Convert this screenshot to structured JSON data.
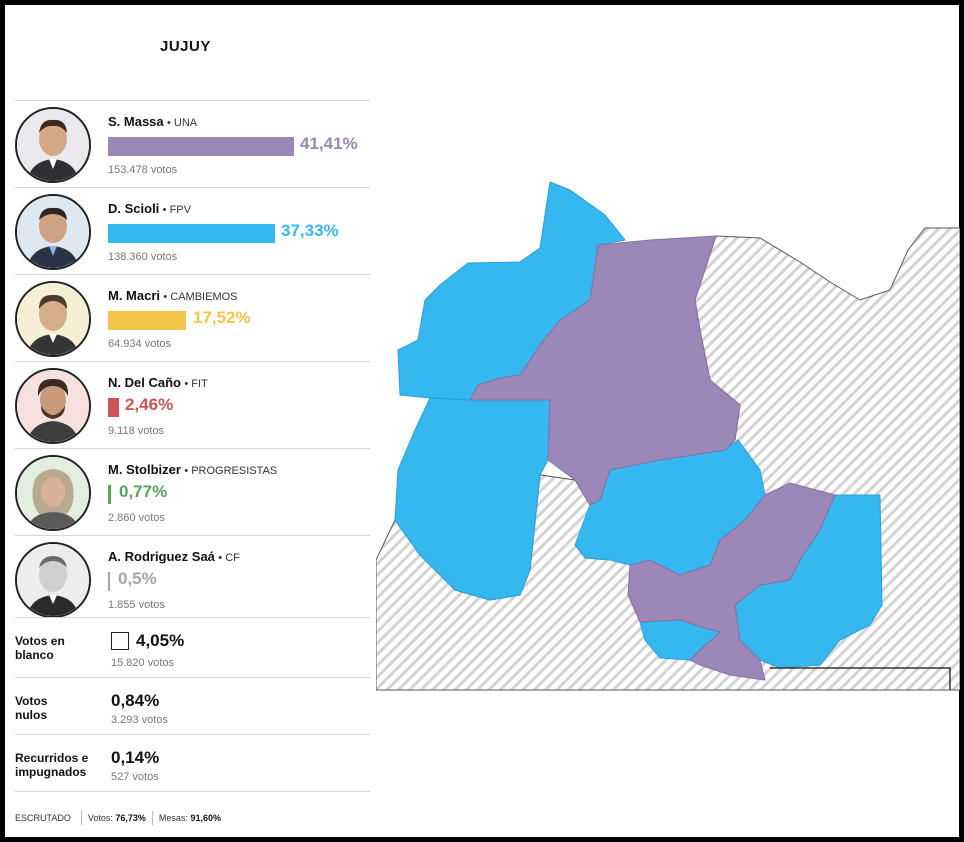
{
  "title": "JUJUY",
  "candidates": [
    {
      "name": "S. Massa",
      "party": "UNA",
      "pct": "41,41%",
      "pct_value": 41.41,
      "votes": "153.478 votos",
      "color": "#9b86b8"
    },
    {
      "name": "D. Scioli",
      "party": "FPV",
      "pct": "37,33%",
      "pct_value": 37.33,
      "votes": "138.360 votos",
      "color": "#35b8f0"
    },
    {
      "name": "M. Macri",
      "party": "CAMBIEMOS",
      "pct": "17,52%",
      "pct_value": 17.52,
      "votes": "64.934 votos",
      "color": "#f2c54a"
    },
    {
      "name": "N. Del Caño",
      "party": "FIT",
      "pct": "2,46%",
      "pct_value": 2.46,
      "votes": "9.118 votos",
      "color": "#cc5555"
    },
    {
      "name": "M. Stolbizer",
      "party": "PROGRESISTAS",
      "pct": "0,77%",
      "pct_value": 0.77,
      "votes": "2.860 votos",
      "color": "#5aa55a"
    },
    {
      "name": "A. Rodriguez Saá",
      "party": "CF",
      "pct": "0,5%",
      "pct_value": 0.5,
      "votes": "1.855 votos",
      "color": "#a5a5a5"
    }
  ],
  "blank": {
    "label_1": "Votos en",
    "label_2": "blanco",
    "pct": "4,05%",
    "votes": "15.820 votos"
  },
  "null": {
    "label_1": "Votos",
    "label_2": "nulos",
    "pct": "0,84%",
    "votes": "3.293 votos"
  },
  "challenged": {
    "label_1": "Recurridos e",
    "label_2": "impugnados",
    "pct": "0,14%",
    "votes": "527 votos"
  },
  "footer": {
    "escrutado": "ESCRUTADO",
    "votos_label": "Votos:",
    "votos_value": "76,73%",
    "mesas_label": "Mesas:",
    "mesas_value": "91,60%"
  },
  "map": {
    "colors": {
      "massa": "#9b86b8",
      "scioli": "#35b8f0",
      "outside": "#d5d5d5"
    }
  }
}
